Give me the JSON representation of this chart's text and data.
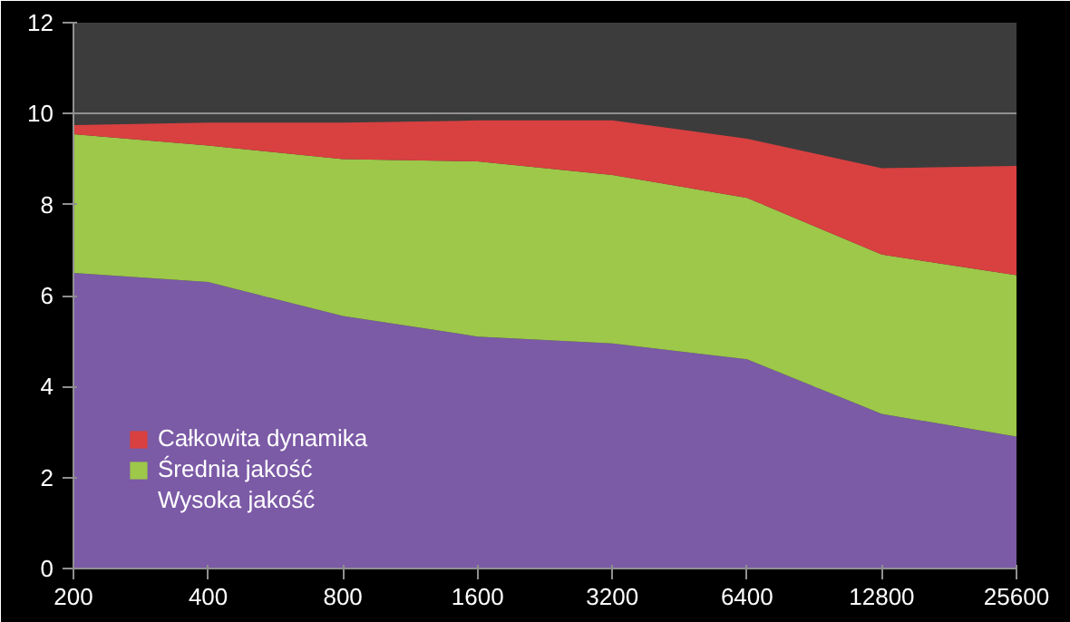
{
  "chart_data": {
    "type": "area",
    "stacked": true,
    "categories": [
      "200",
      "400",
      "800",
      "1600",
      "3200",
      "6400",
      "12800",
      "25600"
    ],
    "series": [
      {
        "name": "Wysoka jakość",
        "color": "#7b5aa6",
        "values": [
          6.5,
          6.3,
          5.55,
          5.1,
          4.95,
          4.6,
          3.4,
          2.9
        ]
      },
      {
        "name": "Średnia jakość",
        "color": "#9dc84a",
        "values": [
          3.05,
          3.0,
          3.45,
          3.85,
          3.7,
          3.55,
          3.5,
          3.55
        ]
      },
      {
        "name": "Całkowita dynamika",
        "color": "#d94040",
        "values": [
          0.2,
          0.5,
          0.8,
          0.9,
          1.2,
          1.3,
          1.9,
          2.4
        ]
      }
    ],
    "ylim": [
      0,
      12
    ],
    "yticks": [
      0,
      2,
      4,
      6,
      8,
      10,
      12
    ],
    "grid": "y",
    "legend": "bottom left"
  }
}
